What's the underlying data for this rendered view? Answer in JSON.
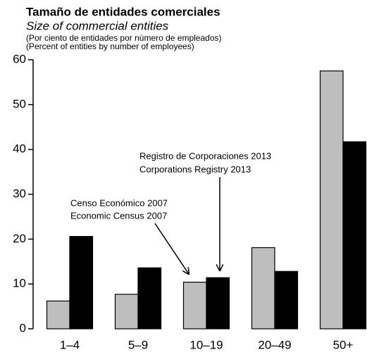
{
  "chart_data": {
    "type": "bar",
    "title": "Tamaño de entidades comerciales",
    "subtitle": "Size of commercial entities",
    "notes": [
      "(Por ciento de entidades por número de empleados)",
      "(Percent of entities by number of employees)"
    ],
    "categories": [
      "1–4",
      "5–9",
      "10–19",
      "20–49",
      "50+"
    ],
    "series": [
      {
        "color": "#bebebe",
        "values": [
          6.2,
          7.7,
          10.4,
          18.1,
          57.5
        ]
      },
      {
        "color": "#000000",
        "values": [
          20.6,
          13.6,
          11.4,
          12.8,
          41.7
        ]
      }
    ],
    "annotations": [
      {
        "lines": [
          "Censo Económico 2007",
          "Economic Census 2007"
        ]
      },
      {
        "lines": [
          "Registro de Corporaciones 2013",
          "Corporations Registry 2013"
        ]
      }
    ],
    "ylim": [
      0,
      60
    ],
    "yticks": [
      0,
      10,
      20,
      30,
      40,
      50,
      60
    ]
  }
}
